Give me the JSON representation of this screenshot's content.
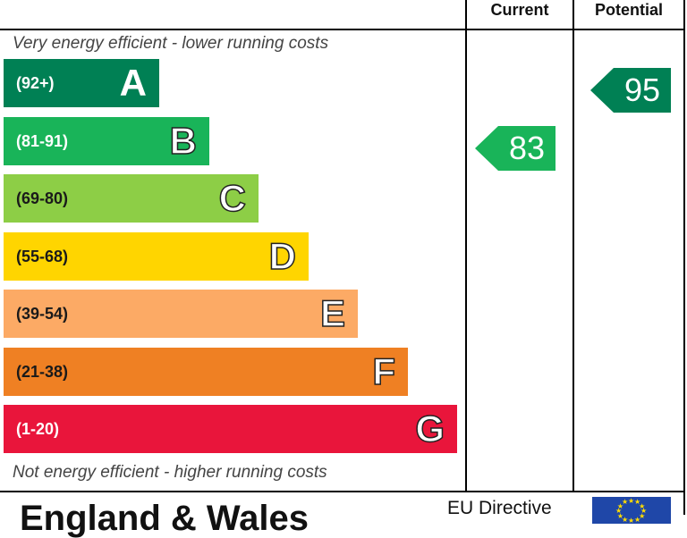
{
  "header": {
    "current_label": "Current",
    "potential_label": "Potential"
  },
  "notes": {
    "top": "Very energy efficient - lower running costs",
    "bottom": "Not energy efficient - higher running costs"
  },
  "bands": [
    {
      "letter": "A",
      "range": "(92+)",
      "color": "#008054"
    },
    {
      "letter": "B",
      "range": "(81-91)",
      "color": "#19b459"
    },
    {
      "letter": "C",
      "range": "(69-80)",
      "color": "#8dce46"
    },
    {
      "letter": "D",
      "range": "(55-68)",
      "color": "#ffd500"
    },
    {
      "letter": "E",
      "range": "(39-54)",
      "color": "#fcaa65"
    },
    {
      "letter": "F",
      "range": "(21-38)",
      "color": "#ef8023"
    },
    {
      "letter": "G",
      "range": "(1-20)",
      "color": "#e9153b"
    }
  ],
  "ratings": {
    "current": {
      "value": "83",
      "band": "B",
      "color": "#19b459"
    },
    "potential": {
      "value": "95",
      "band": "A",
      "color": "#008054"
    }
  },
  "footer": {
    "title": "England & Wales",
    "eu_directive": "EU Directive"
  }
}
